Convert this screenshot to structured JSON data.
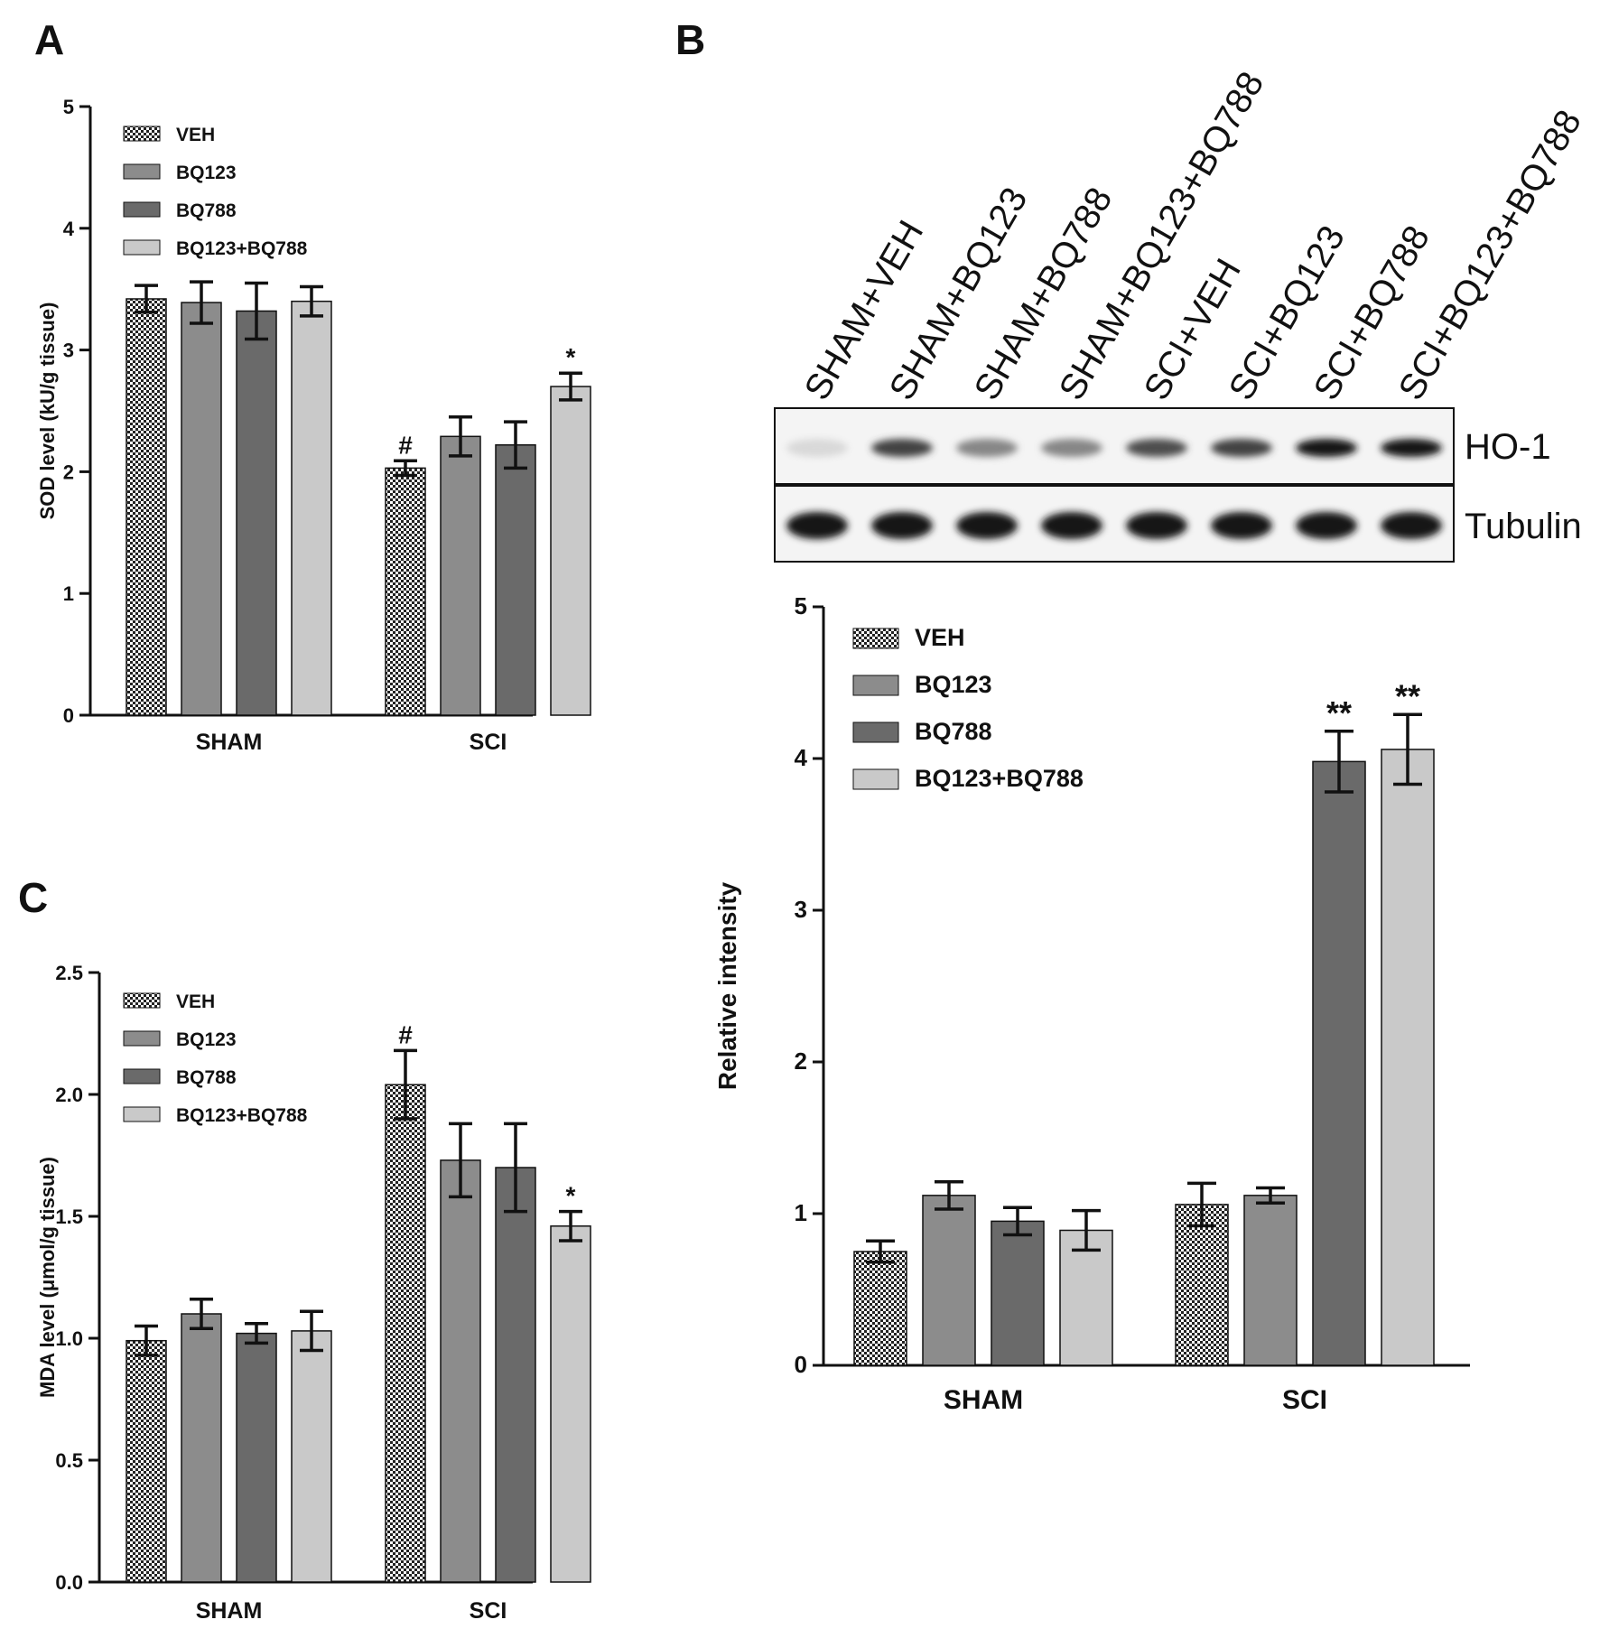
{
  "colors": {
    "VEH": "checker",
    "BQ123": "#8c8c8c",
    "BQ788": "#6a6a6a",
    "BQ123+BQ788": "#c9c9c9",
    "axis": "#111111"
  },
  "panels": {
    "A": {
      "letter": "A"
    },
    "B": {
      "letter": "B"
    },
    "C": {
      "letter": "C"
    }
  },
  "blot": {
    "lanes": [
      "SHAM+VEH",
      "SHAM+BQ123",
      "SHAM+BQ788",
      "SHAM+BQ123+BQ788",
      "SCI+VEH",
      "SCI+BQ123",
      "SCI+BQ788",
      "SCI+BQ123+BQ788"
    ],
    "rows": [
      "HO-1",
      "Tubulin"
    ],
    "ho1_intensity": [
      0.08,
      0.75,
      0.45,
      0.45,
      0.7,
      0.75,
      0.95,
      0.95
    ],
    "tubulin_intensity": [
      0.95,
      0.95,
      0.95,
      0.95,
      0.95,
      0.95,
      0.95,
      0.95
    ]
  },
  "chart_data": [
    {
      "panel": "A",
      "type": "bar",
      "categories": [
        "SHAM",
        "SCI"
      ],
      "ylabel": "SOD level (kU/g tissue)",
      "ylim": [
        0,
        5
      ],
      "yticks": [
        "0",
        "1",
        "2",
        "3",
        "4",
        "5"
      ],
      "legend": "top-left",
      "series": [
        {
          "name": "VEH",
          "values": [
            3.42,
            2.03
          ],
          "errors": [
            0.11,
            0.06
          ]
        },
        {
          "name": "BQ123",
          "values": [
            3.39,
            2.29
          ],
          "errors": [
            0.17,
            0.16
          ]
        },
        {
          "name": "BQ788",
          "values": [
            3.32,
            2.22
          ],
          "errors": [
            0.23,
            0.19
          ]
        },
        {
          "name": "BQ123+BQ788",
          "values": [
            3.4,
            2.7
          ],
          "errors": [
            0.12,
            0.11
          ]
        }
      ],
      "annotations": [
        {
          "text": "#",
          "category": "SCI",
          "series": "VEH"
        },
        {
          "text": "*",
          "category": "SCI",
          "series": "BQ123+BQ788"
        }
      ]
    },
    {
      "panel": "B",
      "type": "bar",
      "categories": [
        "SHAM",
        "SCI"
      ],
      "ylabel": "Relative intensity",
      "ylim": [
        0,
        5
      ],
      "yticks": [
        "0",
        "1",
        "2",
        "3",
        "4",
        "5"
      ],
      "legend": "top-left",
      "series": [
        {
          "name": "VEH",
          "values": [
            0.75,
            1.06
          ],
          "errors": [
            0.07,
            0.14
          ]
        },
        {
          "name": "BQ123",
          "values": [
            1.12,
            1.12
          ],
          "errors": [
            0.09,
            0.05
          ]
        },
        {
          "name": "BQ788",
          "values": [
            0.95,
            3.98
          ],
          "errors": [
            0.09,
            0.2
          ]
        },
        {
          "name": "BQ123+BQ788",
          "values": [
            0.89,
            4.06
          ],
          "errors": [
            0.13,
            0.23
          ]
        }
      ],
      "annotations": [
        {
          "text": "**",
          "category": "SCI",
          "series": "BQ788"
        },
        {
          "text": "**",
          "category": "SCI",
          "series": "BQ123+BQ788"
        }
      ]
    },
    {
      "panel": "C",
      "type": "bar",
      "categories": [
        "SHAM",
        "SCI"
      ],
      "ylabel": "MDA level (μmol/g tissue)",
      "ylim": [
        0,
        2.5
      ],
      "yticks": [
        "0.0",
        "0.5",
        "1.0",
        "1.5",
        "2.0",
        "2.5"
      ],
      "legend": "top-left",
      "series": [
        {
          "name": "VEH",
          "values": [
            0.99,
            2.04
          ],
          "errors": [
            0.06,
            0.14
          ]
        },
        {
          "name": "BQ123",
          "values": [
            1.1,
            1.73
          ],
          "errors": [
            0.06,
            0.15
          ]
        },
        {
          "name": "BQ788",
          "values": [
            1.02,
            1.7
          ],
          "errors": [
            0.04,
            0.18
          ]
        },
        {
          "name": "BQ123+BQ788",
          "values": [
            1.03,
            1.46
          ],
          "errors": [
            0.08,
            0.06
          ]
        }
      ],
      "annotations": [
        {
          "text": "#",
          "category": "SCI",
          "series": "VEH"
        },
        {
          "text": "*",
          "category": "SCI",
          "series": "BQ123+BQ788"
        }
      ]
    }
  ]
}
